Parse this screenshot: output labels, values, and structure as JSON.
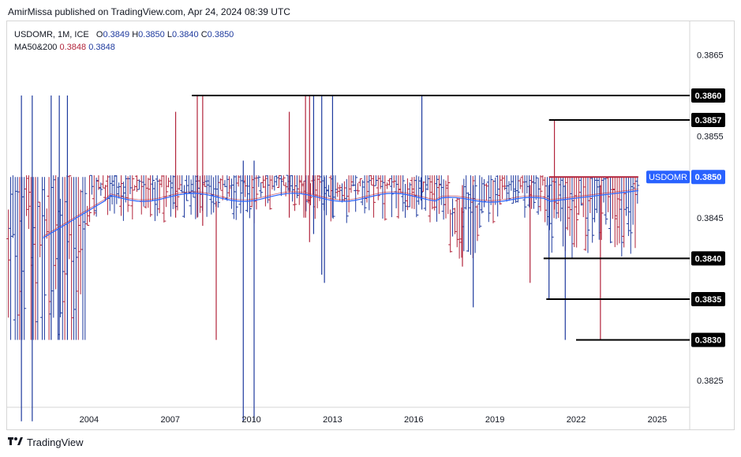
{
  "header": {
    "publisher_line": "AmirMissa published on TradingView.com, Apr 24, 2024 08:39 UTC"
  },
  "legend": {
    "symbol_line": "USDOMR, 1M, ICE",
    "open_label": "O",
    "open": "0.3849",
    "high_label": "H",
    "high": "0.3850",
    "low_label": "L",
    "low": "0.3840",
    "close_label": "C",
    "close": "0.3850",
    "ma_label": "MA50&200",
    "ma50": "0.3848",
    "ma200": "0.3848"
  },
  "footer": {
    "brand": "TradingView",
    "icon": "tradingview-logo-icon"
  },
  "colors": {
    "up": "#1e3a9e",
    "down": "#b2243b",
    "ma": "#2962ff",
    "tag": "#2962ff"
  },
  "chart_data": {
    "type": "ohlc",
    "symbol": "USDOMR",
    "interval": "1M",
    "exchange": "ICE",
    "ylim": [
      0.382,
      0.387
    ],
    "y_ticks": [
      "0.3825",
      "0.3845",
      "0.3855",
      "0.3865"
    ],
    "x_range_years": [
      2001.0,
      2026.2
    ],
    "x_ticks": [
      "2004",
      "2007",
      "2010",
      "2013",
      "2016",
      "2019",
      "2022",
      "2025"
    ],
    "current_price_label": "USDOMR",
    "current_price": "0.3850",
    "horizontal_levels": [
      {
        "value": 0.386,
        "label": "0.3860",
        "from_year": 2007.8,
        "to_year": 2026.0
      },
      {
        "value": 0.3857,
        "label": "0.3857",
        "from_year": 2021.0,
        "to_year": 2026.0
      },
      {
        "value": 0.385,
        "label": "",
        "from_year": 2021.0,
        "to_year": 2024.3
      },
      {
        "value": 0.384,
        "label": "0.3840",
        "from_year": 2020.8,
        "to_year": 2026.0
      },
      {
        "value": 0.3835,
        "label": "0.3835",
        "from_year": 2020.9,
        "to_year": 2026.0
      },
      {
        "value": 0.383,
        "label": "0.3830",
        "from_year": 2022.0,
        "to_year": 2026.0
      }
    ],
    "wick_spikes": [
      {
        "year": 2001.5,
        "high": 0.386,
        "low": 0.382,
        "dir": "up"
      },
      {
        "year": 2001.9,
        "high": 0.386,
        "low": 0.382,
        "dir": "up"
      },
      {
        "year": 2002.6,
        "high": 0.386,
        "low": 0.383,
        "dir": "up"
      },
      {
        "year": 2002.9,
        "high": 0.386,
        "low": 0.383,
        "dir": "up"
      },
      {
        "year": 2003.2,
        "high": 0.386,
        "low": 0.383,
        "dir": "up"
      },
      {
        "year": 2008.0,
        "high": 0.386,
        "low": 0.3845,
        "dir": "down"
      },
      {
        "year": 2008.2,
        "high": 0.386,
        "low": 0.3844,
        "dir": "down"
      },
      {
        "year": 2007.2,
        "high": 0.3858,
        "low": 0.3845,
        "dir": "down"
      },
      {
        "year": 2008.7,
        "high": 0.3847,
        "low": 0.383,
        "dir": "down"
      },
      {
        "year": 2009.7,
        "high": 0.3852,
        "low": 0.382,
        "dir": "up"
      },
      {
        "year": 2010.1,
        "high": 0.3852,
        "low": 0.382,
        "dir": "up"
      },
      {
        "year": 2011.4,
        "high": 0.3858,
        "low": 0.3845,
        "dir": "down"
      },
      {
        "year": 2012.0,
        "high": 0.386,
        "low": 0.3845,
        "dir": "down"
      },
      {
        "year": 2012.15,
        "high": 0.386,
        "low": 0.3842,
        "dir": "down"
      },
      {
        "year": 2012.3,
        "high": 0.386,
        "low": 0.3843,
        "dir": "up"
      },
      {
        "year": 2012.6,
        "high": 0.386,
        "low": 0.3838,
        "dir": "up"
      },
      {
        "year": 2012.7,
        "high": 0.385,
        "low": 0.3837,
        "dir": "up"
      },
      {
        "year": 2013.0,
        "high": 0.386,
        "low": 0.3845,
        "dir": "up"
      },
      {
        "year": 2016.3,
        "high": 0.386,
        "low": 0.3846,
        "dir": "up"
      },
      {
        "year": 2017.8,
        "high": 0.3849,
        "low": 0.3839,
        "dir": "down"
      },
      {
        "year": 2018.2,
        "high": 0.3849,
        "low": 0.3834,
        "dir": "up"
      },
      {
        "year": 2020.3,
        "high": 0.3849,
        "low": 0.3837,
        "dir": "down"
      },
      {
        "year": 2021.2,
        "high": 0.3857,
        "low": 0.3846,
        "dir": "down"
      },
      {
        "year": 2021.0,
        "high": 0.3849,
        "low": 0.3835,
        "dir": "up"
      },
      {
        "year": 2021.6,
        "high": 0.3849,
        "low": 0.383,
        "dir": "up"
      },
      {
        "year": 2022.9,
        "high": 0.3849,
        "low": 0.383,
        "dir": "down"
      }
    ],
    "ma_series": [
      {
        "name": "MA50",
        "value": "0.3848"
      },
      {
        "name": "MA200",
        "value": "0.3848"
      }
    ]
  }
}
